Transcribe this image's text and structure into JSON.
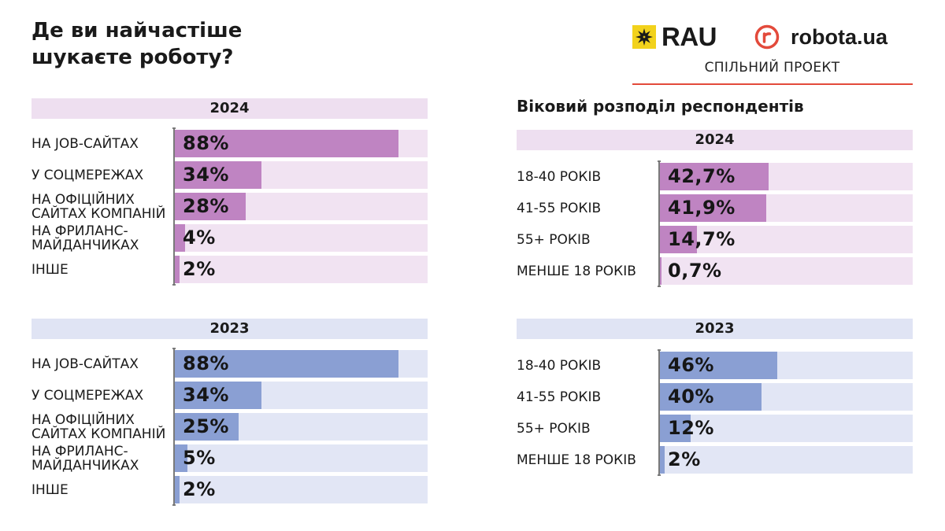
{
  "header": {
    "title": "Де ви найчастіше\nшукаєте роботу?",
    "rau_logo_text": "RAU",
    "robota_logo_text": "robota.ua",
    "project_label": "СПІЛЬНИЙ ПРОЕКТ"
  },
  "age_section_title": "Віковий розподіл респондентів",
  "colors": {
    "purple_fill": "#bf84c2",
    "purple_track": "#f1e3f2",
    "purple_header": "#eedff0",
    "blue_fill": "#8a9fd3",
    "blue_track": "#e2e6f5",
    "blue_header": "#e0e4f4",
    "rau_yellow": "#f2d21c",
    "robota_red": "#e34a3b"
  },
  "chart_data": [
    {
      "type": "bar",
      "orientation": "horizontal",
      "title": "2024",
      "categories": [
        "НА JOB-САЙТАХ",
        "У СОЦМЕРЕЖАХ",
        "НА ОФІЦІЙНИХ\nСАЙТАХ КОМПАНІЙ",
        "НА ФРИЛАНС-\nМАЙДАНЧИКАХ",
        "ІНШЕ"
      ],
      "values": [
        88,
        34,
        28,
        4,
        2
      ],
      "labels": [
        "88%",
        "34%",
        "28%",
        "4%",
        "2%"
      ],
      "xlim": [
        0,
        100
      ],
      "color": "purple"
    },
    {
      "type": "bar",
      "orientation": "horizontal",
      "title": "2023",
      "categories": [
        "НА JOB-САЙТАХ",
        "У СОЦМЕРЕЖАХ",
        "НА ОФІЦІЙНИХ\nСАЙТАХ КОМПАНІЙ",
        "НА ФРИЛАНС-\nМАЙДАНЧИКАХ",
        "ІНШЕ"
      ],
      "values": [
        88,
        34,
        25,
        5,
        2
      ],
      "labels": [
        "88%",
        "34%",
        "25%",
        "5%",
        "2%"
      ],
      "xlim": [
        0,
        100
      ],
      "color": "blue"
    },
    {
      "type": "bar",
      "orientation": "horizontal",
      "title": "2024",
      "categories": [
        "18-40 РОКІВ",
        "41-55 РОКІВ",
        "55+ РОКІВ",
        "МЕНШЕ 18 РОКІВ"
      ],
      "values": [
        42.7,
        41.9,
        14.7,
        0.7
      ],
      "labels": [
        "42,7%",
        "41,9%",
        "14,7%",
        "0,7%"
      ],
      "xlim": [
        0,
        100
      ],
      "color": "purple"
    },
    {
      "type": "bar",
      "orientation": "horizontal",
      "title": "2023",
      "categories": [
        "18-40 РОКІВ",
        "41-55 РОКІВ",
        "55+ РОКІВ",
        "МЕНШЕ 18 РОКІВ"
      ],
      "values": [
        46,
        40,
        12,
        2
      ],
      "labels": [
        "46%",
        "40%",
        "12%",
        "2%"
      ],
      "xlim": [
        0,
        100
      ],
      "color": "blue"
    }
  ]
}
